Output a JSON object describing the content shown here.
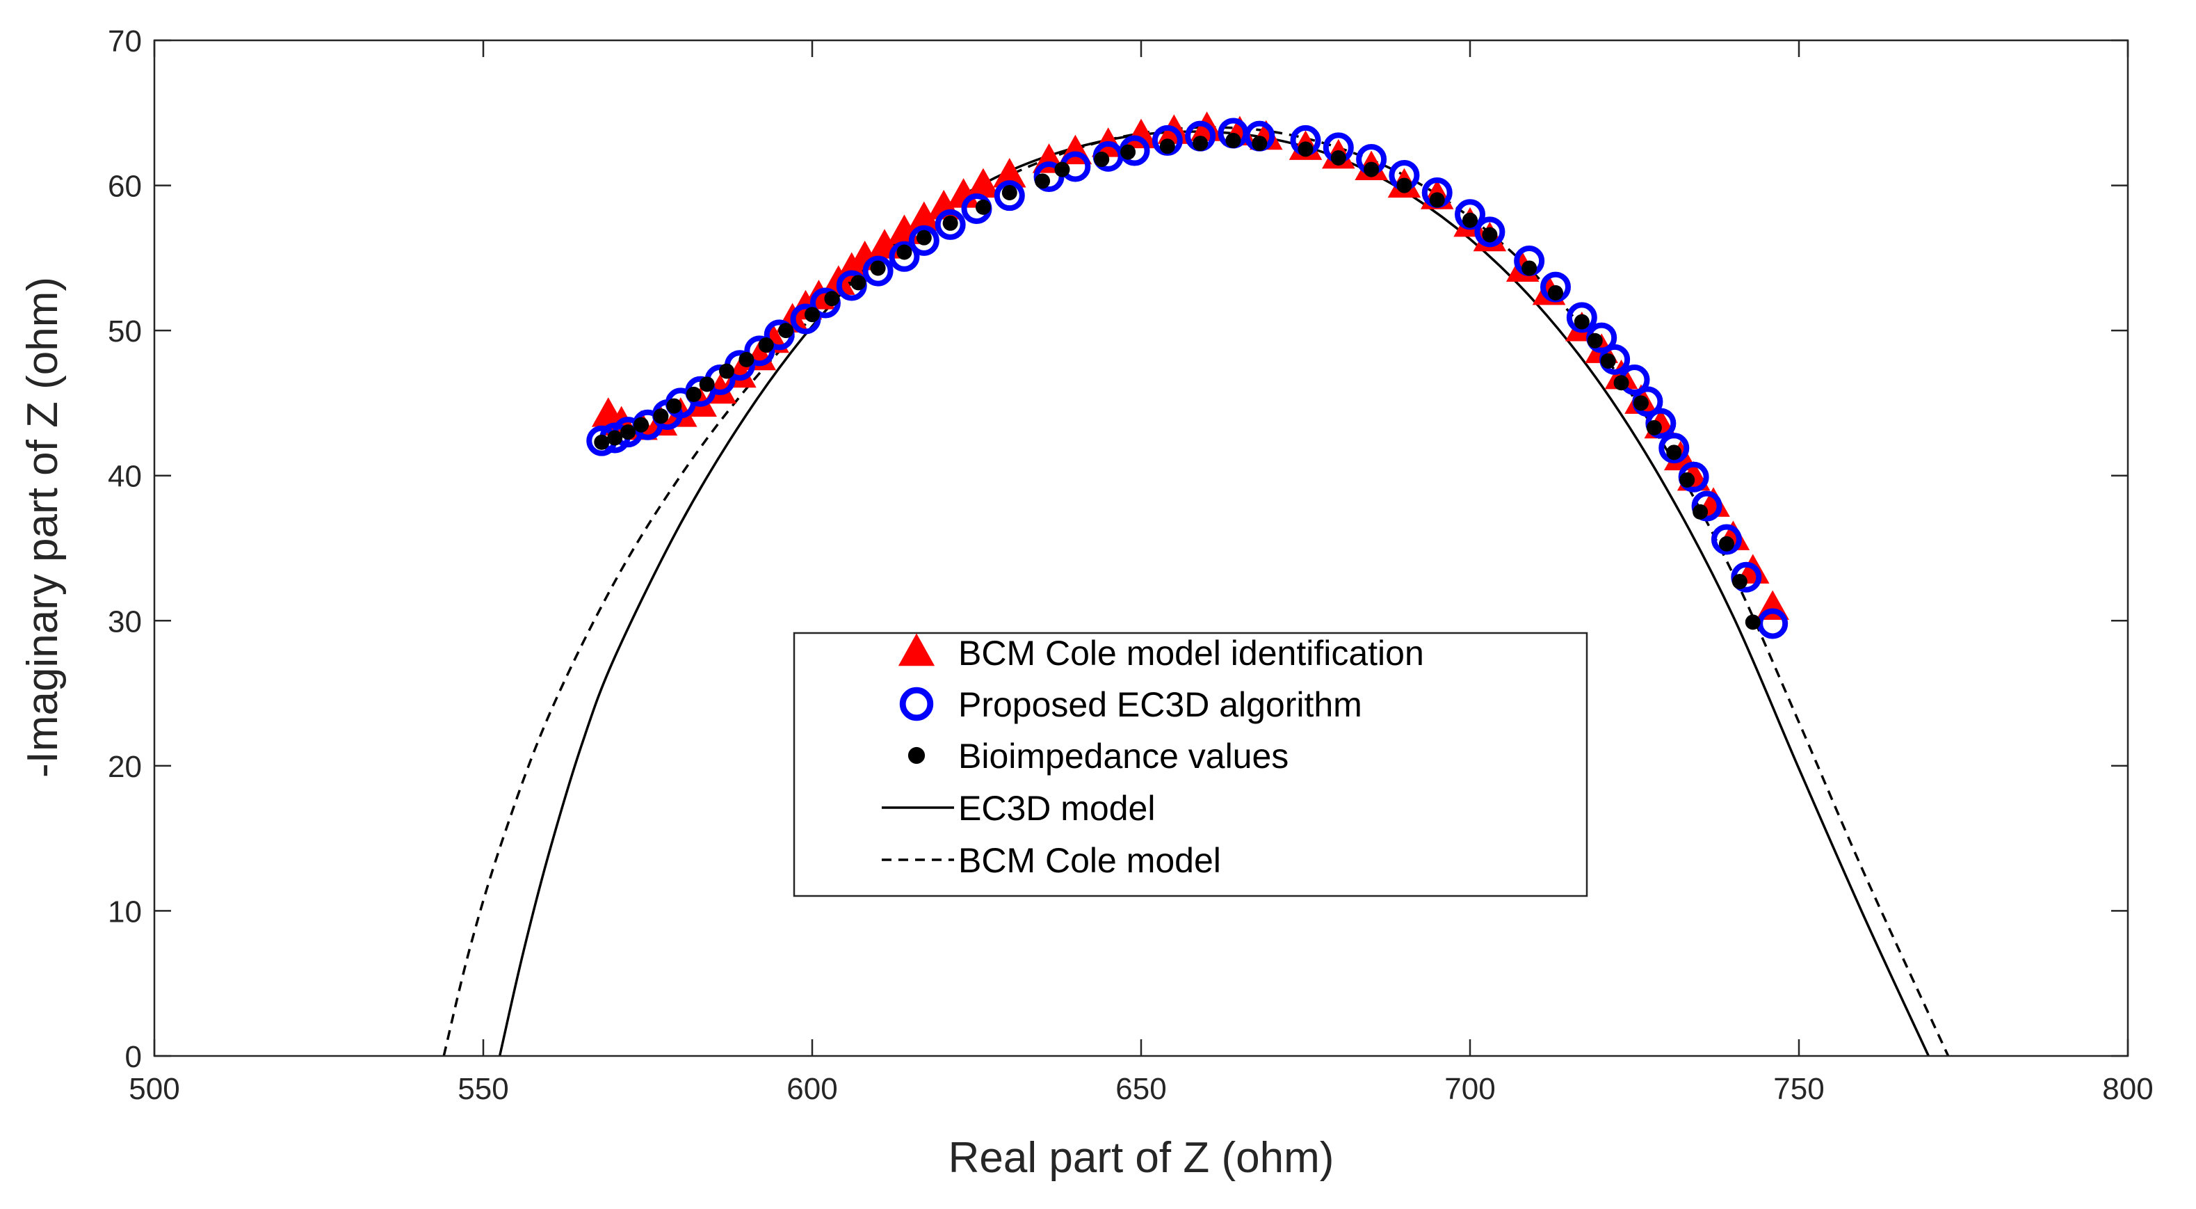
{
  "chart_data": {
    "type": "scatter",
    "title": "",
    "xlabel": "Real part of Z (ohm)",
    "ylabel": "-Imaginary part of Z (ohm)",
    "xlim": [
      500,
      800
    ],
    "ylim": [
      0,
      70
    ],
    "xticks": [
      500,
      550,
      600,
      650,
      700,
      750,
      800
    ],
    "yticks": [
      0,
      10,
      20,
      30,
      40,
      50,
      60,
      70
    ],
    "grid": false,
    "legend_position": "center",
    "series": [
      {
        "name": "BCM Cole model identification",
        "kind": "markers",
        "marker": "triangle",
        "color": "#ff0000",
        "points": [
          [
            569,
            44.2
          ],
          [
            571,
            43.6
          ],
          [
            574,
            43.3
          ],
          [
            577,
            43.6
          ],
          [
            580,
            44.2
          ],
          [
            583,
            44.9
          ],
          [
            586,
            45.8
          ],
          [
            589,
            46.9
          ],
          [
            592,
            48.1
          ],
          [
            594,
            49.3
          ],
          [
            597,
            50.7
          ],
          [
            599,
            51.6
          ],
          [
            601,
            52.3
          ],
          [
            604,
            53.3
          ],
          [
            606,
            54.2
          ],
          [
            608,
            55.0
          ],
          [
            611,
            55.8
          ],
          [
            614,
            56.8
          ],
          [
            617,
            57.7
          ],
          [
            620,
            58.5
          ],
          [
            623,
            59.3
          ],
          [
            626,
            60.0
          ],
          [
            630,
            60.7
          ],
          [
            636,
            61.7
          ],
          [
            640,
            62.3
          ],
          [
            645,
            62.8
          ],
          [
            650,
            63.4
          ],
          [
            655,
            63.7
          ],
          [
            660,
            63.9
          ],
          [
            665,
            63.6
          ],
          [
            669,
            63.3
          ],
          [
            675,
            62.6
          ],
          [
            680,
            62.0
          ],
          [
            685,
            61.2
          ],
          [
            690,
            60.0
          ],
          [
            695,
            59.2
          ],
          [
            700,
            57.3
          ],
          [
            703,
            56.3
          ],
          [
            708,
            54.2
          ],
          [
            712,
            52.6
          ],
          [
            717,
            50.1
          ],
          [
            720,
            48.6
          ],
          [
            723,
            46.8
          ],
          [
            726,
            45.1
          ],
          [
            729,
            43.4
          ],
          [
            732,
            41.2
          ],
          [
            734,
            39.8
          ],
          [
            737,
            38.0
          ],
          [
            740,
            35.7
          ],
          [
            743,
            33.4
          ],
          [
            746,
            30.9
          ]
        ]
      },
      {
        "name": "Proposed EC3D algorithm",
        "kind": "markers",
        "marker": "open-circle",
        "color": "#0000ff",
        "points": [
          [
            568,
            42.4
          ],
          [
            570,
            42.6
          ],
          [
            572,
            43.0
          ],
          [
            575,
            43.5
          ],
          [
            578,
            44.2
          ],
          [
            580,
            45.0
          ],
          [
            583,
            45.8
          ],
          [
            586,
            46.6
          ],
          [
            589,
            47.6
          ],
          [
            592,
            48.6
          ],
          [
            595,
            49.7
          ],
          [
            599,
            50.8
          ],
          [
            602,
            51.9
          ],
          [
            606,
            53.1
          ],
          [
            610,
            54.1
          ],
          [
            614,
            55.1
          ],
          [
            617,
            56.2
          ],
          [
            621,
            57.3
          ],
          [
            625,
            58.4
          ],
          [
            630,
            59.3
          ],
          [
            636,
            60.6
          ],
          [
            640,
            61.3
          ],
          [
            645,
            62.0
          ],
          [
            649,
            62.4
          ],
          [
            654,
            63.1
          ],
          [
            659,
            63.4
          ],
          [
            664,
            63.6
          ],
          [
            668,
            63.4
          ],
          [
            675,
            63.1
          ],
          [
            680,
            62.6
          ],
          [
            685,
            61.8
          ],
          [
            690,
            60.7
          ],
          [
            695,
            59.5
          ],
          [
            700,
            58.0
          ],
          [
            703,
            56.8
          ],
          [
            709,
            54.8
          ],
          [
            713,
            53.0
          ],
          [
            717,
            50.9
          ],
          [
            720,
            49.5
          ],
          [
            722,
            48.0
          ],
          [
            725,
            46.6
          ],
          [
            727,
            45.1
          ],
          [
            729,
            43.6
          ],
          [
            731,
            41.9
          ],
          [
            734,
            39.9
          ],
          [
            736,
            37.9
          ],
          [
            739,
            35.6
          ],
          [
            742,
            33.0
          ],
          [
            746,
            29.8
          ]
        ]
      },
      {
        "name": "Bioimpedance values",
        "kind": "markers",
        "marker": "filled-circle",
        "color": "#000000",
        "points": [
          [
            568,
            42.3
          ],
          [
            570,
            42.6
          ],
          [
            572,
            43.0
          ],
          [
            574,
            43.5
          ],
          [
            577,
            44.1
          ],
          [
            579,
            44.8
          ],
          [
            582,
            45.6
          ],
          [
            584,
            46.3
          ],
          [
            587,
            47.2
          ],
          [
            590,
            48.0
          ],
          [
            593,
            49.0
          ],
          [
            596,
            50.0
          ],
          [
            600,
            51.1
          ],
          [
            603,
            52.2
          ],
          [
            607,
            53.3
          ],
          [
            610,
            54.3
          ],
          [
            614,
            55.4
          ],
          [
            617,
            56.4
          ],
          [
            621,
            57.4
          ],
          [
            626,
            58.5
          ],
          [
            630,
            59.5
          ],
          [
            635,
            60.3
          ],
          [
            638,
            61.1
          ],
          [
            644,
            61.8
          ],
          [
            648,
            62.3
          ],
          [
            654,
            62.7
          ],
          [
            659,
            62.9
          ],
          [
            664,
            63.1
          ],
          [
            668,
            62.9
          ],
          [
            675,
            62.5
          ],
          [
            680,
            61.9
          ],
          [
            685,
            61.1
          ],
          [
            690,
            60.0
          ],
          [
            695,
            59.0
          ],
          [
            700,
            57.6
          ],
          [
            703,
            56.6
          ],
          [
            709,
            54.3
          ],
          [
            713,
            52.6
          ],
          [
            717,
            50.6
          ],
          [
            719,
            49.3
          ],
          [
            721,
            47.9
          ],
          [
            723,
            46.4
          ],
          [
            726,
            45.0
          ],
          [
            728,
            43.3
          ],
          [
            731,
            41.6
          ],
          [
            733,
            39.7
          ],
          [
            735,
            37.5
          ],
          [
            739,
            35.3
          ],
          [
            741,
            32.7
          ],
          [
            743,
            29.9
          ]
        ]
      },
      {
        "name": "EC3D model",
        "kind": "line",
        "style": "solid",
        "color": "#000000",
        "points": [
          [
            552.5,
            0
          ],
          [
            556,
            7
          ],
          [
            560,
            14
          ],
          [
            565,
            21.5
          ],
          [
            570,
            27.5
          ],
          [
            580,
            36.7
          ],
          [
            590,
            44.2
          ],
          [
            600,
            50.3
          ],
          [
            610,
            55.0
          ],
          [
            620,
            58.5
          ],
          [
            630,
            61.0
          ],
          [
            640,
            62.6
          ],
          [
            650,
            63.5
          ],
          [
            660,
            63.7
          ],
          [
            670,
            63.2
          ],
          [
            680,
            61.9
          ],
          [
            690,
            59.6
          ],
          [
            700,
            56.3
          ],
          [
            710,
            51.9
          ],
          [
            720,
            46.2
          ],
          [
            730,
            39.0
          ],
          [
            740,
            30.3
          ],
          [
            750,
            19.8
          ],
          [
            760,
            9.5
          ],
          [
            769.7,
            0
          ]
        ]
      },
      {
        "name": "BCM Cole model",
        "kind": "line",
        "style": "dashed",
        "color": "#000000",
        "points": [
          [
            544,
            0
          ],
          [
            548,
            7.5
          ],
          [
            553,
            15
          ],
          [
            560,
            23.5
          ],
          [
            570,
            32.7
          ],
          [
            580,
            40.0
          ],
          [
            590,
            46.0
          ],
          [
            600,
            50.9
          ],
          [
            610,
            55.0
          ],
          [
            620,
            58.2
          ],
          [
            630,
            60.7
          ],
          [
            640,
            62.5
          ],
          [
            650,
            63.6
          ],
          [
            660,
            64.0
          ],
          [
            670,
            63.7
          ],
          [
            680,
            62.6
          ],
          [
            690,
            60.7
          ],
          [
            700,
            57.8
          ],
          [
            710,
            53.8
          ],
          [
            720,
            48.5
          ],
          [
            730,
            41.7
          ],
          [
            740,
            33.2
          ],
          [
            750,
            23.0
          ],
          [
            760,
            12.5
          ],
          [
            772.7,
            0
          ]
        ]
      }
    ],
    "legend": [
      "BCM Cole model identification",
      "Proposed EC3D algorithm",
      "Bioimpedance values",
      "EC3D model",
      "BCM Cole model"
    ]
  }
}
